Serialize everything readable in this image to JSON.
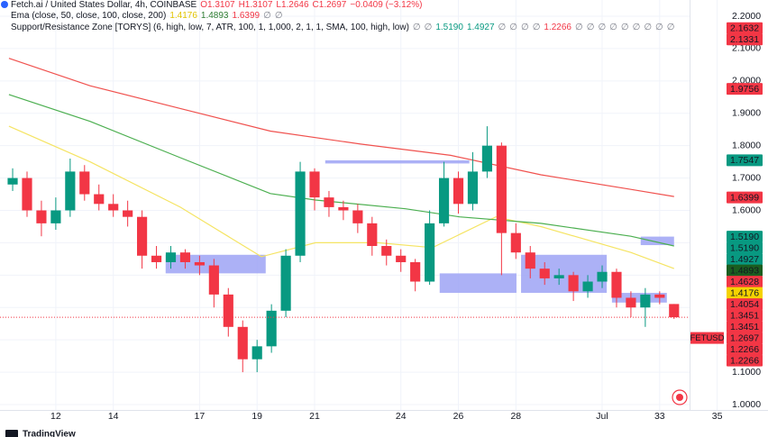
{
  "chart_data": {
    "type": "candlestick",
    "title": "Fetch.ai / United States Dollar, 4h, COINBASE",
    "ohlc_legend": [
      {
        "text": "O1.3107",
        "color": "#f23645"
      },
      {
        "text": "H1.3107",
        "color": "#f23645"
      },
      {
        "text": "L1.2646",
        "color": "#f23645"
      },
      {
        "text": "C1.2697",
        "color": "#f23645"
      },
      {
        "text": "−0.0409 (−3.12%)",
        "color": "#f23645"
      }
    ],
    "indicators": [
      {
        "label": "Ema (close, 50, close, 100, close, 200)",
        "items": [
          {
            "text": "1.4176",
            "color": "#e2c400"
          },
          {
            "text": "1.4893",
            "color": "#2e7d32"
          },
          {
            "text": "1.6399",
            "color": "#f23645"
          },
          {
            "text": "∅",
            "color": "#787b86"
          },
          {
            "text": "∅",
            "color": "#787b86"
          }
        ]
      },
      {
        "label": "Support/Resistance Zone [TORYS] (6, high, low, 7, ATR, 100, 1, 1,000, 2, 1, 1, SMA, 100, high, low)",
        "items": [
          {
            "text": "∅",
            "color": "#787b86"
          },
          {
            "text": "∅",
            "color": "#787b86"
          },
          {
            "text": "1.5190",
            "color": "#089981"
          },
          {
            "text": "1.4927",
            "color": "#089981"
          },
          {
            "text": "∅",
            "color": "#787b86"
          },
          {
            "text": "∅",
            "color": "#787b86"
          },
          {
            "text": "∅",
            "color": "#787b86"
          },
          {
            "text": "∅",
            "color": "#787b86"
          },
          {
            "text": "1.2266",
            "color": "#f23645"
          },
          {
            "text": "∅",
            "color": "#787b86"
          },
          {
            "text": "∅",
            "color": "#787b86"
          },
          {
            "text": "∅",
            "color": "#787b86"
          },
          {
            "text": "∅",
            "color": "#787b86"
          },
          {
            "text": "∅",
            "color": "#787b86"
          },
          {
            "text": "∅",
            "color": "#787b86"
          },
          {
            "text": "∅",
            "color": "#787b86"
          },
          {
            "text": "∅",
            "color": "#787b86"
          },
          {
            "text": "∅",
            "color": "#787b86"
          }
        ]
      }
    ],
    "up_color": "#089981",
    "down_color": "#f23645",
    "x": [
      10.5,
      11,
      11.5,
      12,
      12.5,
      13,
      13.5,
      14,
      14.5,
      15,
      15.5,
      16,
      16.5,
      17,
      17.5,
      18,
      18.5,
      19,
      19.5,
      20,
      20.5,
      21,
      21.5,
      22,
      22.5,
      23,
      23.5,
      24,
      24.5,
      25,
      25.5,
      26,
      26.5,
      27,
      27.5,
      28,
      28.5,
      29,
      29.5,
      30,
      30.5,
      31,
      31.5,
      32,
      32.5,
      33,
      33.5
    ],
    "open": [
      1.68,
      1.7,
      1.6,
      1.56,
      1.6,
      1.72,
      1.65,
      1.62,
      1.6,
      1.58,
      1.46,
      1.44,
      1.47,
      1.44,
      1.43,
      1.34,
      1.24,
      1.14,
      1.18,
      1.29,
      1.46,
      1.72,
      1.64,
      1.61,
      1.6,
      1.56,
      1.49,
      1.46,
      1.44,
      1.38,
      1.56,
      1.7,
      1.62,
      1.72,
      1.8,
      1.53,
      1.47,
      1.42,
      1.39,
      1.4,
      1.35,
      1.38,
      1.41,
      1.33,
      1.3,
      1.34,
      1.3107
    ],
    "high": [
      1.73,
      1.72,
      1.63,
      1.64,
      1.76,
      1.74,
      1.68,
      1.65,
      1.63,
      1.6,
      1.49,
      1.49,
      1.48,
      1.46,
      1.45,
      1.36,
      1.26,
      1.2,
      1.31,
      1.48,
      1.75,
      1.73,
      1.66,
      1.63,
      1.62,
      1.58,
      1.51,
      1.48,
      1.45,
      1.6,
      1.75,
      1.72,
      1.78,
      1.86,
      1.81,
      1.56,
      1.49,
      1.44,
      1.42,
      1.41,
      1.4,
      1.43,
      1.42,
      1.35,
      1.36,
      1.35,
      1.3107
    ],
    "low": [
      1.66,
      1.58,
      1.52,
      1.54,
      1.58,
      1.63,
      1.6,
      1.58,
      1.55,
      1.42,
      1.42,
      1.42,
      1.42,
      1.4,
      1.3,
      1.21,
      1.1,
      1.1,
      1.16,
      1.27,
      1.44,
      1.6,
      1.58,
      1.57,
      1.53,
      1.46,
      1.43,
      1.41,
      1.35,
      1.37,
      1.55,
      1.59,
      1.6,
      1.7,
      1.4,
      1.45,
      1.39,
      1.37,
      1.37,
      1.32,
      1.33,
      1.36,
      1.3,
      1.27,
      1.24,
      1.31,
      1.2646
    ],
    "close": [
      1.7,
      1.6,
      1.56,
      1.6,
      1.72,
      1.65,
      1.62,
      1.6,
      1.58,
      1.46,
      1.44,
      1.47,
      1.44,
      1.43,
      1.34,
      1.24,
      1.14,
      1.18,
      1.29,
      1.46,
      1.72,
      1.64,
      1.61,
      1.6,
      1.56,
      1.49,
      1.46,
      1.44,
      1.38,
      1.56,
      1.7,
      1.62,
      1.72,
      1.8,
      1.53,
      1.47,
      1.42,
      1.39,
      1.4,
      1.35,
      1.38,
      1.41,
      1.33,
      1.3,
      1.34,
      1.33,
      1.2697
    ],
    "lines": [
      {
        "color": "#f5e463",
        "x": [
          10.37,
          13.19,
          16.33,
          19.15,
          21.03,
          23.2,
          25.1,
          27.3,
          28.87,
          32.0,
          33.5
        ],
        "values": [
          1.86,
          1.75,
          1.61,
          1.457,
          1.5,
          1.5,
          1.485,
          1.58,
          1.55,
          1.47,
          1.42
        ]
      },
      {
        "color": "#4caf50",
        "x": [
          10.37,
          13.19,
          16.33,
          19.46,
          21.03,
          24.16,
          26.04,
          28.87,
          32.0,
          33.5
        ],
        "values": [
          1.958,
          1.875,
          1.763,
          1.652,
          1.632,
          1.605,
          1.58,
          1.56,
          1.52,
          1.49
        ]
      },
      {
        "color": "#f0524f",
        "x": [
          10.37,
          13.19,
          16.33,
          19.46,
          22.6,
          25.73,
          28.87,
          32.0,
          33.5
        ],
        "values": [
          2.07,
          1.985,
          1.915,
          1.845,
          1.805,
          1.77,
          1.71,
          1.665,
          1.643
        ]
      }
    ],
    "zone_color": "#9ea3f5",
    "zones": [
      {
        "x": [
          21.37,
          26.38
        ],
        "y": [
          1.745,
          1.7547
        ]
      },
      {
        "x": [
          15.82,
          19.3
        ],
        "y": [
          1.4054,
          1.4628
        ]
      },
      {
        "x": [
          25.35,
          28.02
        ],
        "y": [
          1.3451,
          1.4054
        ]
      },
      {
        "x": [
          28.18,
          31.16
        ],
        "y": [
          1.3451,
          1.4628
        ]
      },
      {
        "x": [
          31.34,
          33.25
        ],
        "y": [
          1.3151,
          1.3451
        ]
      },
      {
        "x": [
          32.34,
          33.5
        ],
        "y": [
          1.4927,
          1.519
        ]
      }
    ],
    "xlim": [
      10.06,
      34.04
    ],
    "ylim": [
      0.9833,
      2.2501
    ],
    "xticks": [
      12,
      14,
      17,
      19,
      21,
      24,
      26,
      28,
      {
        "value": 31,
        "label": "Jul"
      },
      33,
      35
    ],
    "yticks": [
      {
        "value": 1.0,
        "label": "1.0000"
      },
      {
        "value": 1.1,
        "label": "1.1000"
      },
      {
        "value": 1.2,
        "label": "1.2000"
      },
      {
        "value": 1.3,
        "label": "1.3000"
      },
      {
        "value": 1.4,
        "label": "1.4000"
      },
      {
        "value": 1.5,
        "label": "1.5000"
      },
      {
        "value": 1.6,
        "label": "1.6000"
      },
      {
        "value": 1.7,
        "label": "1.7000"
      },
      {
        "value": 1.8,
        "label": "1.8000"
      },
      {
        "value": 1.9,
        "label": "1.9000"
      },
      {
        "value": 2.0,
        "label": "2.0000"
      },
      {
        "value": 2.1,
        "label": "2.1000"
      },
      {
        "value": 2.2,
        "label": "2.2000"
      }
    ],
    "grid": true,
    "price_labels": [
      {
        "value": 2.1632,
        "label": "2.1632",
        "color": "#f23645"
      },
      {
        "value": 2.1331,
        "label": "2.1331",
        "color": "#f23645"
      },
      {
        "value": 1.9756,
        "label": "1.9756",
        "color": "#f23645"
      },
      {
        "value": 1.7547,
        "label": "1.7547",
        "color": "#089981"
      },
      {
        "value": 1.6399,
        "label": "1.6399",
        "color": "#f23645"
      },
      {
        "value": 1.519,
        "label": "1.5190",
        "color": "#089981"
      },
      {
        "value": 1.519,
        "label": "1.5190",
        "color": "#089981"
      },
      {
        "value": 1.4927,
        "label": "1.4927",
        "color": "#089981"
      },
      {
        "value": 1.4893,
        "label": "1.4893",
        "color": "#1b5e20"
      },
      {
        "value": 1.4628,
        "label": "1.4628",
        "color": "#f23645"
      },
      {
        "value": 1.4176,
        "label": "1.4176",
        "color": "#f5d300",
        "text_color": "#131722"
      },
      {
        "value": 1.4054,
        "label": "1.4054",
        "color": "#f23645"
      },
      {
        "value": 1.3451,
        "label": "1.3451",
        "color": "#f23645"
      },
      {
        "value": 1.3451,
        "label": "1.3451",
        "color": "#f23645"
      },
      {
        "value": 1.2697,
        "label": "1.2697",
        "color": "#f23645",
        "symbol": "FETUSD"
      },
      {
        "value": 1.2266,
        "label": "1.2266",
        "color": "#f23645"
      },
      {
        "value": 1.2266,
        "label": "1.2266",
        "color": "#f23645"
      }
    ],
    "last_price": 1.2697,
    "brand": "TradingView"
  }
}
